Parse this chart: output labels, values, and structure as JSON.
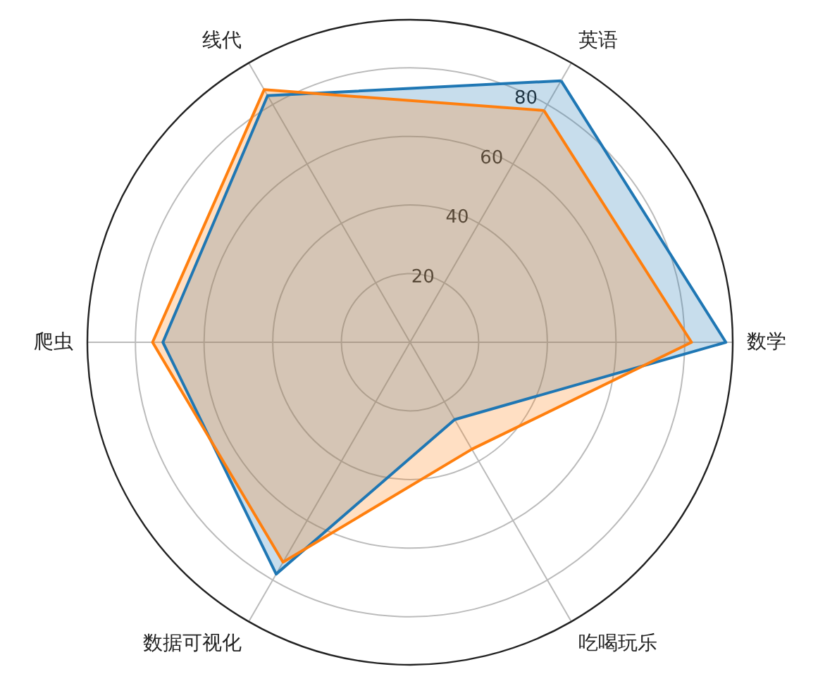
{
  "chart_data": {
    "type": "radar",
    "categories": [
      "英语",
      "数学",
      "吃喝玩乐",
      "数据可视化",
      "爬虫",
      "线代"
    ],
    "series": [
      {
        "color": "#1f77b4",
        "values": [
          88,
          92,
          26,
          78,
          72,
          83
        ]
      },
      {
        "color": "#ff7f0e",
        "values": [
          78,
          82,
          36,
          74,
          75,
          85
        ]
      }
    ],
    "ylim": [
      0,
      94
    ],
    "yticks": [
      20,
      40,
      60,
      80
    ],
    "grid": true
  }
}
